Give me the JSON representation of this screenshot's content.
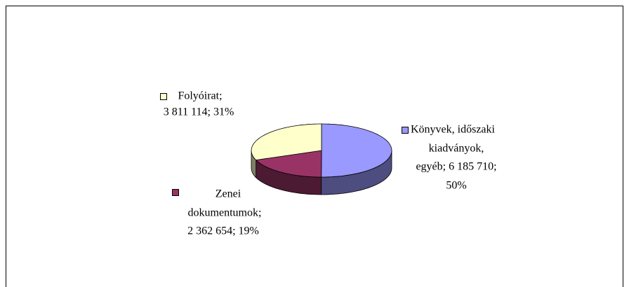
{
  "chart_data": {
    "type": "pie3d",
    "values": [
      6185710,
      2362654,
      3811114
    ],
    "value_labels": [
      [
        "Könyvek, időszaki",
        "kiadványok,",
        "egyéb; 6 185 710;",
        "50%"
      ],
      [
        "Zenei",
        "dokumentumok;",
        "2 362 654; 19%"
      ],
      [
        "Folyóirat;",
        "3 811 114; 31%"
      ]
    ],
    "colors": [
      "#9999ff",
      "#993366",
      "#ffffcc"
    ]
  }
}
